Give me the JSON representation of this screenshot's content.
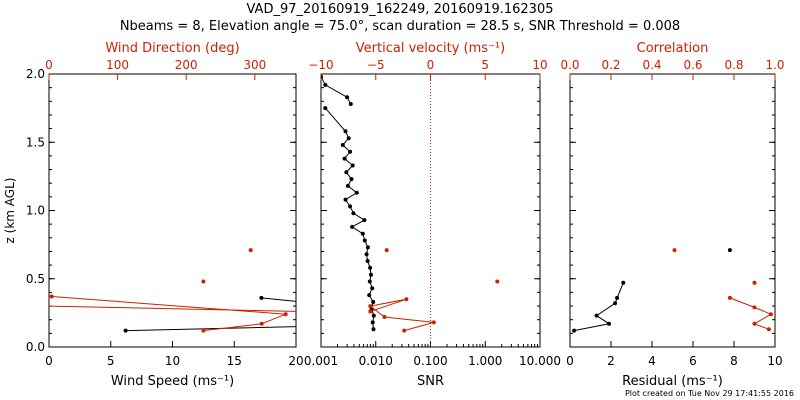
{
  "title_line1": "VAD_97_20160919_162249, 20160919.162305",
  "title_line2": "Nbeams = 8, Elevation angle = 75.0°, scan duration = 28.5 s, SNR Threshold = 0.008",
  "footer": "Plot created on Tue Nov 29 17:41:55 2016",
  "colors": {
    "black": "#000000",
    "red": "#cc2200"
  },
  "chart_data": [
    {
      "id": "panel1",
      "type": "line",
      "ylabel": "z (km AGL)",
      "ylim": [
        0,
        2.0
      ],
      "yticks": [
        0.0,
        0.5,
        1.0,
        1.5,
        2.0
      ],
      "bottom_axis": {
        "label": "Wind Speed (ms⁻¹)",
        "range": [
          0,
          20
        ],
        "ticks": [
          0,
          5,
          10,
          15,
          20
        ],
        "tick_labels": [
          "0",
          "5",
          "10",
          "15",
          "20"
        ],
        "color": "#000000"
      },
      "top_axis": {
        "label": "Wind Direction (deg)",
        "range": [
          0,
          360
        ],
        "ticks": [
          0,
          100,
          200,
          300
        ],
        "tick_labels": [
          "0",
          "100",
          "200",
          "300"
        ],
        "color": "#cc2200"
      },
      "series": [
        {
          "axis": "bottom",
          "color": "#000000",
          "x": [
            6.2,
            20.5
          ],
          "z": [
            0.12,
            0.15
          ],
          "marker": true,
          "clip": true
        },
        {
          "axis": "bottom",
          "color": "#000000",
          "x": [
            17.2,
            20.5
          ],
          "z": [
            0.36,
            0.33
          ],
          "marker": true,
          "clip": true
        },
        {
          "axis": "top",
          "color": "#cc2200",
          "x": [
            4,
            345,
            310,
            225
          ],
          "z": [
            0.37,
            0.24,
            0.17,
            0.12
          ],
          "marker": true,
          "clip": true
        },
        {
          "axis": "top",
          "color": "#cc2200",
          "x": [
            0,
            370
          ],
          "z": [
            0.3,
            0.26
          ],
          "marker": false,
          "clip": true
        },
        {
          "axis": "top",
          "color": "#cc2200",
          "x": [
            225
          ],
          "z": [
            0.48
          ],
          "marker": true
        },
        {
          "axis": "top",
          "color": "#cc2200",
          "x": [
            294
          ],
          "z": [
            0.71
          ],
          "marker": true
        }
      ]
    },
    {
      "id": "panel2",
      "type": "line",
      "ylim": [
        0,
        2.0
      ],
      "yticks": [
        0.0,
        0.5,
        1.0,
        1.5,
        2.0
      ],
      "bottom_axis": {
        "label": "SNR",
        "log": true,
        "range": [
          0.001,
          10
        ],
        "ticks": [
          0.001,
          0.01,
          0.1,
          1,
          10
        ],
        "tick_labels": [
          "0.001",
          "0.010",
          "0.100",
          "1.000",
          "10.000"
        ],
        "color": "#000000"
      },
      "top_axis": {
        "label": "Vertical velocity (ms⁻¹)",
        "range": [
          -10,
          10
        ],
        "ticks": [
          -10,
          -5,
          0,
          5,
          10
        ],
        "tick_labels": [
          "−10",
          "−5",
          "0",
          "5",
          "10"
        ],
        "color": "#cc2200"
      },
      "reference_line": {
        "axis": "top",
        "x": 0,
        "color": "#cc2200",
        "style": "dotted"
      },
      "series": [
        {
          "axis": "bottom",
          "color": "#000000",
          "x": [
            0.001,
            0.0012,
            0.003,
            0.0035,
            0.0012,
            0.0028,
            0.0032,
            0.0025,
            0.0034,
            0.0027,
            0.0038,
            0.0029,
            0.0036,
            0.0031,
            0.0045,
            0.0028,
            0.0034,
            0.0039,
            0.0062,
            0.0037,
            0.0058,
            0.0063,
            0.0072,
            0.0068,
            0.0071,
            0.0079,
            0.0082,
            0.0078,
            0.0086,
            0.0076,
            0.009,
            0.0084,
            0.0092,
            0.0088,
            0.0091
          ],
          "z": [
            1.98,
            1.92,
            1.83,
            1.78,
            1.75,
            1.58,
            1.53,
            1.48,
            1.43,
            1.38,
            1.33,
            1.28,
            1.23,
            1.18,
            1.13,
            1.08,
            1.03,
            0.98,
            0.93,
            0.88,
            0.83,
            0.78,
            0.73,
            0.68,
            0.63,
            0.58,
            0.53,
            0.48,
            0.43,
            0.38,
            0.33,
            0.28,
            0.23,
            0.18,
            0.13
          ],
          "breaks": [
            4
          ],
          "marker": true
        },
        {
          "axis": "top",
          "color": "#cc2200",
          "x": [
            -5.5,
            -2.2,
            -5.5,
            -4.2,
            0.3,
            -2.4
          ],
          "z": [
            0.26,
            0.35,
            0.3,
            0.22,
            0.18,
            0.12
          ],
          "marker": true
        },
        {
          "axis": "top",
          "color": "#cc2200",
          "x": [
            -4.0
          ],
          "z": [
            0.71
          ],
          "marker": true
        },
        {
          "axis": "top",
          "color": "#cc2200",
          "x": [
            6.1
          ],
          "z": [
            0.48
          ],
          "marker": true
        }
      ]
    },
    {
      "id": "panel3",
      "type": "line",
      "ylim": [
        0,
        2.0
      ],
      "yticks": [
        0.0,
        0.5,
        1.0,
        1.5,
        2.0
      ],
      "bottom_axis": {
        "label": "Residual (ms⁻¹)",
        "range": [
          0,
          10
        ],
        "ticks": [
          0,
          2,
          4,
          6,
          8,
          10
        ],
        "tick_labels": [
          "0",
          "2",
          "4",
          "6",
          "8",
          "10"
        ],
        "color": "#000000"
      },
      "top_axis": {
        "label": "Correlation",
        "range": [
          0,
          1.0
        ],
        "ticks": [
          0.0,
          0.2,
          0.4,
          0.6,
          0.8,
          1.0
        ],
        "tick_labels": [
          "0.0",
          "0.2",
          "0.4",
          "0.6",
          "0.8",
          "1.0"
        ],
        "color": "#cc2200"
      },
      "series": [
        {
          "axis": "bottom",
          "color": "#000000",
          "x": [
            2.6,
            2.3,
            2.2,
            1.3,
            1.9,
            0.2
          ],
          "z": [
            0.47,
            0.36,
            0.32,
            0.23,
            0.17,
            0.12
          ],
          "marker": true
        },
        {
          "axis": "bottom",
          "color": "#000000",
          "x": [
            7.8
          ],
          "z": [
            0.71
          ],
          "marker": true
        },
        {
          "axis": "top",
          "color": "#cc2200",
          "x": [
            0.78,
            0.9,
            0.98,
            0.9,
            0.97
          ],
          "z": [
            0.36,
            0.29,
            0.24,
            0.17,
            0.13
          ],
          "marker": true
        },
        {
          "axis": "top",
          "color": "#cc2200",
          "x": [
            0.9
          ],
          "z": [
            0.47
          ],
          "marker": true
        },
        {
          "axis": "top",
          "color": "#cc2200",
          "x": [
            0.51
          ],
          "z": [
            0.71
          ],
          "marker": true
        }
      ]
    }
  ]
}
